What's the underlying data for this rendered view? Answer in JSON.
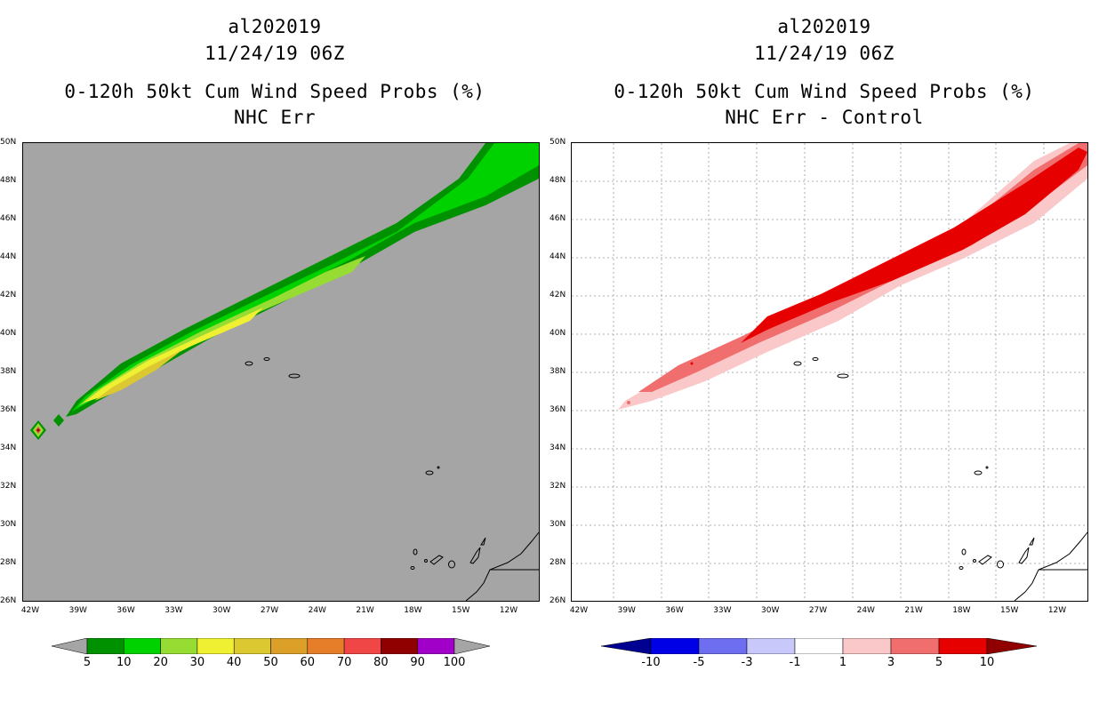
{
  "left": {
    "storm_id": "al202019",
    "datetime": "11/24/19 06Z",
    "product": "0-120h 50kt Cum Wind Speed Probs (%)",
    "subtitle": "NHC Err",
    "lat_labels": [
      "50N",
      "48N",
      "46N",
      "44N",
      "42N",
      "40N",
      "38N",
      "36N",
      "34N",
      "32N",
      "30N",
      "28N",
      "26N"
    ],
    "lon_labels": [
      "42W",
      "39W",
      "36W",
      "33W",
      "30W",
      "27W",
      "24W",
      "21W",
      "18W",
      "15W",
      "12W"
    ],
    "colorbar": {
      "ticks": [
        "5",
        "10",
        "20",
        "30",
        "40",
        "50",
        "60",
        "70",
        "80",
        "90",
        "100"
      ],
      "colors": [
        "#009100",
        "#00d200",
        "#96dc32",
        "#f0f032",
        "#dcc830",
        "#dca028",
        "#e67d28",
        "#f04646",
        "#910000",
        "#a000c8"
      ],
      "under": "#a5a5a5",
      "over": "#a5a5a5"
    },
    "background": "#a5a5a5"
  },
  "right": {
    "storm_id": "al202019",
    "datetime": "11/24/19 06Z",
    "product": "0-120h 50kt Cum Wind Speed Probs (%)",
    "subtitle": "NHC Err - Control",
    "lat_labels": [
      "50N",
      "48N",
      "46N",
      "44N",
      "42N",
      "40N",
      "38N",
      "36N",
      "34N",
      "32N",
      "30N",
      "28N",
      "26N"
    ],
    "lon_labels": [
      "42W",
      "39W",
      "36W",
      "33W",
      "30W",
      "27W",
      "24W",
      "21W",
      "18W",
      "15W",
      "12W"
    ],
    "colorbar": {
      "ticks": [
        "-10",
        "-5",
        "-3",
        "-1",
        "1",
        "3",
        "5",
        "10"
      ],
      "colors": [
        "#0000e6",
        "#6e6ef0",
        "#c8c8fa",
        "#ffffff",
        "#fac8c8",
        "#f06e6e",
        "#e60000"
      ],
      "under": "#000091",
      "over": "#910000"
    },
    "background": "#ffffff"
  }
}
